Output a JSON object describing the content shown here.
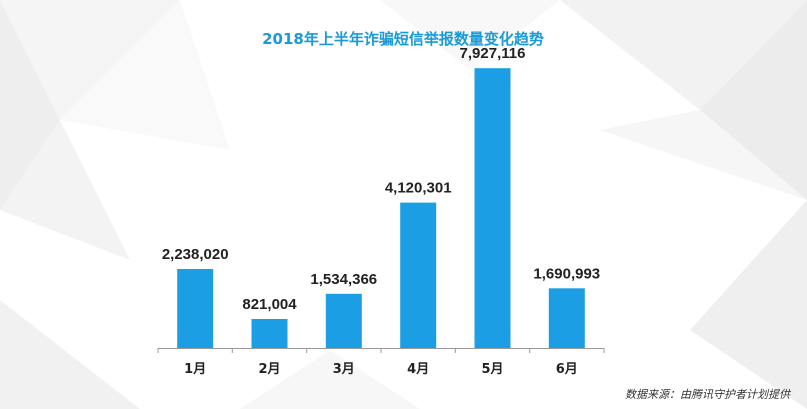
{
  "chart_data": {
    "type": "bar",
    "title": "2018年上半年诈骗短信举报数量变化趋势",
    "categories": [
      "1月",
      "2月",
      "3月",
      "4月",
      "5月",
      "6月"
    ],
    "values": [
      2238020,
      821004,
      1534366,
      4120301,
      7927116,
      1690993
    ],
    "value_labels": [
      "2,238,020",
      "821,004",
      "1,534,366",
      "4,120,301",
      "7,927,116",
      "1,690,993"
    ],
    "xlabel": "",
    "ylabel": "",
    "ylim": [
      0,
      8500000
    ],
    "grid": false,
    "legend": "none"
  },
  "source_note": "数据来源：由腾讯守护者计划提供",
  "colors": {
    "bar": "#1b9ee3",
    "title": "#1a9ad6",
    "axis": "#999999",
    "text": "#222222",
    "background_shape": "#f2f2f2"
  }
}
